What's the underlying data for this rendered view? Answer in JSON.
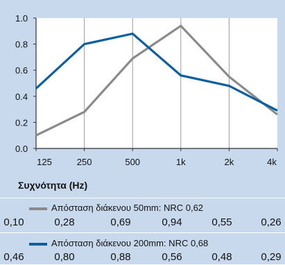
{
  "chart_data": {
    "type": "line",
    "categories": [
      "125",
      "250",
      "500",
      "1k",
      "2k",
      "4k"
    ],
    "xlabel": "Συχνότητα (Hz)",
    "ylabel": "",
    "ylim": [
      0,
      1.0
    ],
    "yticks": [
      "0.0",
      "0.2",
      "0.4",
      "0.6",
      "0.8",
      "1.0"
    ],
    "grid": "vertical",
    "series": [
      {
        "name": "Απόσταση διάκενου 50mm: NRC 0,62",
        "color": "#8a8a8a",
        "values": [
          0.1,
          0.28,
          0.69,
          0.94,
          0.55,
          0.26
        ],
        "value_labels": [
          "0,10",
          "0,28",
          "0,69",
          "0,94",
          "0,55",
          "0,26"
        ]
      },
      {
        "name": "Απόσταση διάκενου 200mm: NRC 0,68",
        "color": "#0a5fa3",
        "values": [
          0.46,
          0.8,
          0.88,
          0.56,
          0.48,
          0.29
        ],
        "value_labels": [
          "0,46",
          "0,80",
          "0,88",
          "0,56",
          "0,48",
          "0,29"
        ]
      }
    ]
  }
}
